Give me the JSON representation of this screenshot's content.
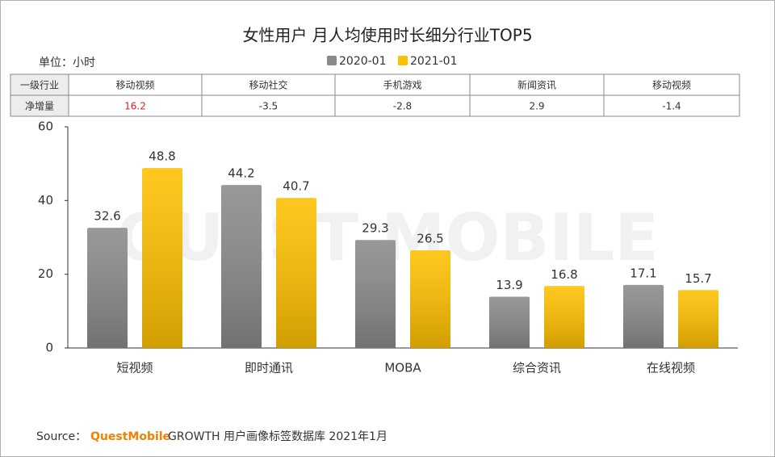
{
  "chart_data": {
    "type": "bar",
    "title": "女性用户 月人均使用时长细分行业TOP5",
    "categories": [
      "短视频",
      "即时通讯",
      "MOBA",
      "综合资讯",
      "在线视频"
    ],
    "series": [
      {
        "name": "2020-01",
        "color": "#8a8a8a",
        "values": [
          32.6,
          44.2,
          29.3,
          13.9,
          17.1
        ]
      },
      {
        "name": "2021-01",
        "color": "#ffc000",
        "values": [
          48.8,
          40.7,
          26.5,
          16.8,
          15.7
        ]
      }
    ],
    "ylim": [
      0,
      60
    ],
    "yticks": [
      0,
      20,
      40,
      60
    ],
    "grid": false
  },
  "unit": "单位：小时",
  "watermark": "QUEST MOBILE",
  "table": {
    "rows": [
      [
        "一级行业",
        "移动视频",
        "移动社交",
        "手机游戏",
        "新闻资讯",
        "移动视频"
      ],
      [
        "净增量",
        16.2,
        -3.5,
        -2.8,
        2.9,
        -1.4
      ]
    ]
  },
  "source": {
    "prefix": "Source：",
    "brand": "QuestMobile",
    "text": "GROWTH 用户画像标签数据库 2021年1月"
  }
}
